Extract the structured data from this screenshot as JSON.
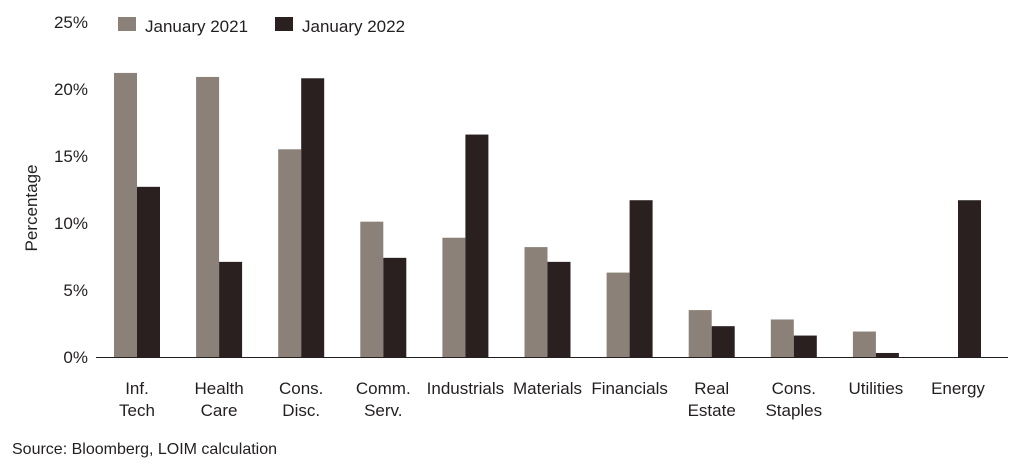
{
  "chart_data": {
    "type": "bar",
    "categories": [
      [
        "Inf.",
        "Tech"
      ],
      [
        "Health",
        "Care"
      ],
      [
        "Cons.",
        "Disc."
      ],
      [
        "Comm.",
        "Serv."
      ],
      [
        "Industrials"
      ],
      [
        "Materials"
      ],
      [
        "Financials"
      ],
      [
        "Real",
        "Estate"
      ],
      [
        "Cons.",
        "Staples"
      ],
      [
        "Utilities"
      ],
      [
        "Energy"
      ]
    ],
    "series": [
      {
        "name": "January 2021",
        "color": "#8b8178",
        "values": [
          21.2,
          20.9,
          15.5,
          10.1,
          8.9,
          8.2,
          6.3,
          3.5,
          2.8,
          1.9,
          0.0
        ]
      },
      {
        "name": "January 2022",
        "color": "#2a2020",
        "values": [
          12.7,
          7.1,
          20.8,
          7.4,
          16.6,
          7.1,
          11.7,
          2.3,
          1.6,
          0.3,
          11.7
        ]
      }
    ],
    "ylabel": "Percentage",
    "yticks": [
      "0%",
      "5%",
      "10%",
      "15%",
      "20%",
      "25%"
    ],
    "ylim": [
      0,
      25
    ],
    "grid": false,
    "legend_position": "top"
  },
  "source": "Source: Bloomberg, LOIM calculation"
}
